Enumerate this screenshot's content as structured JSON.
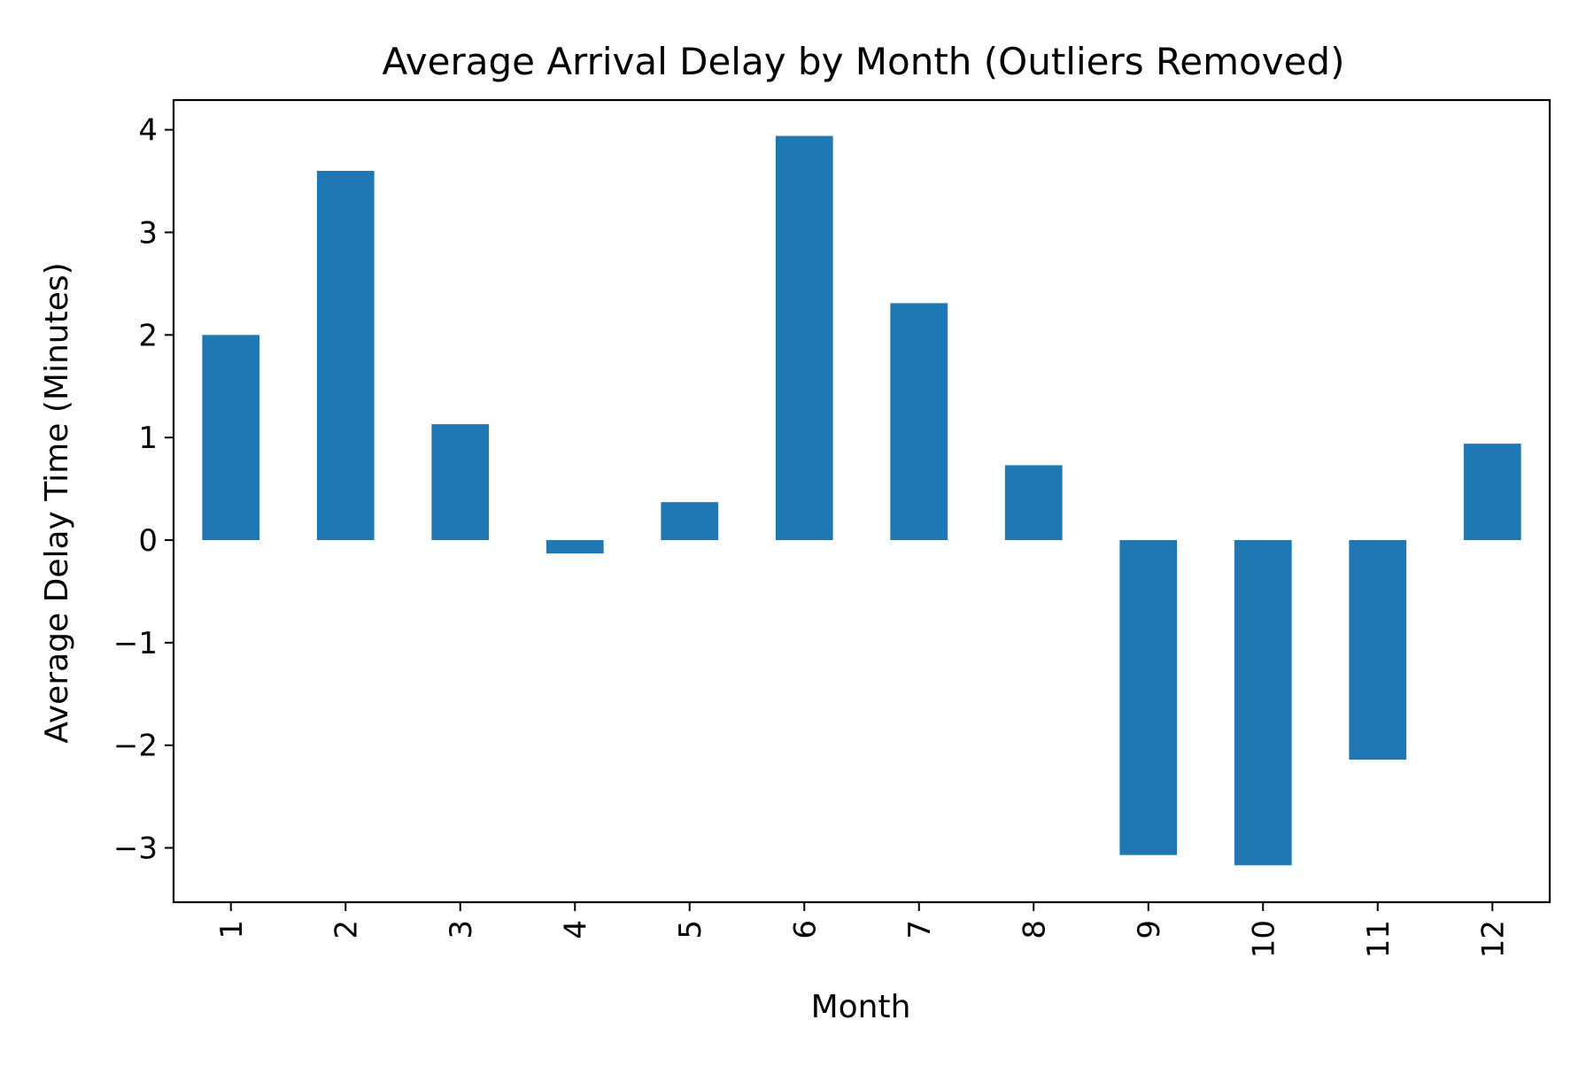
{
  "chart_data": {
    "type": "bar",
    "title": "Average Arrival Delay by Month (Outliers Removed)",
    "xlabel": "Month",
    "ylabel": "Average Delay Time (Minutes)",
    "categories": [
      "1",
      "2",
      "3",
      "4",
      "5",
      "6",
      "7",
      "8",
      "9",
      "10",
      "11",
      "12"
    ],
    "values": [
      2.0,
      3.6,
      1.13,
      -0.13,
      0.37,
      3.94,
      2.31,
      0.73,
      -3.07,
      -3.17,
      -2.14,
      0.94
    ],
    "yticks": [
      -3,
      -2,
      -1,
      0,
      1,
      2,
      3,
      4
    ],
    "ytick_labels": [
      "−3",
      "−2",
      "−1",
      "0",
      "1",
      "2",
      "3",
      "4"
    ],
    "ylim": [
      -3.53,
      4.29
    ],
    "x_tick_rotation": "vertical",
    "grid": false,
    "legend": "none",
    "bar_color": "#1f77b4"
  }
}
